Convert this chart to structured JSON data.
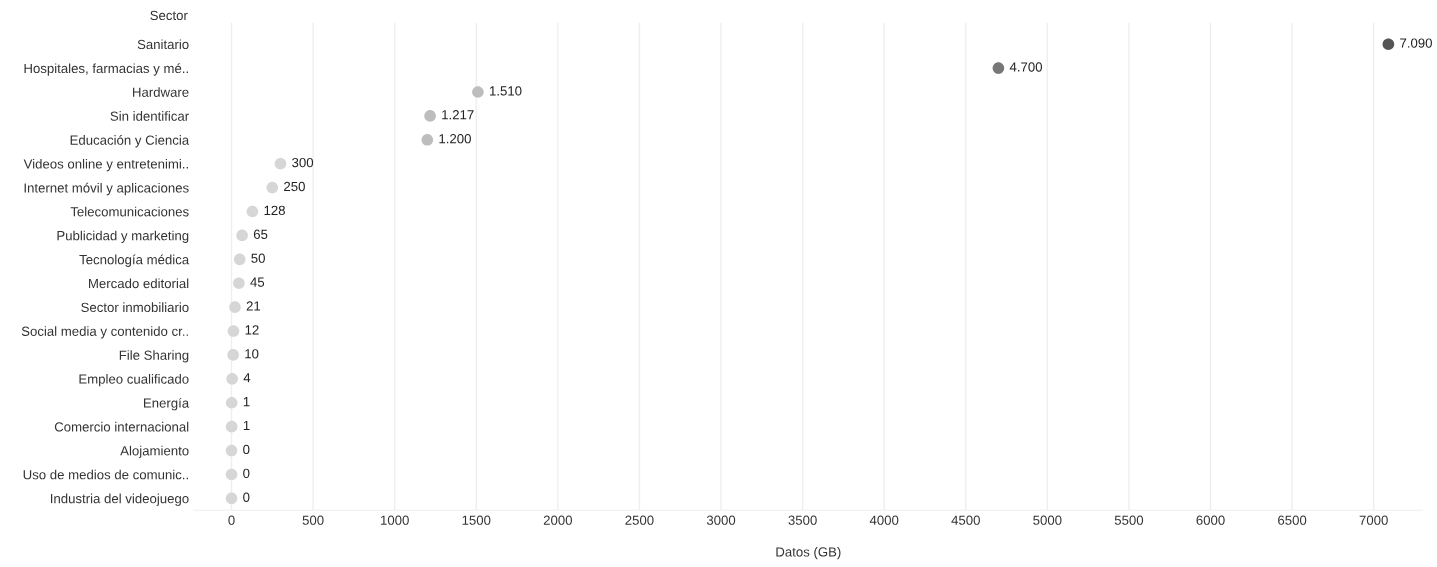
{
  "chart_data": {
    "type": "scatter",
    "orientation": "horizontal",
    "xlabel": "Datos (GB)",
    "ylabel": "Sector",
    "categories": [
      "Sanitario",
      "Hospitales, farmacias y mé..",
      "Hardware",
      "Sin identificar",
      "Educación y Ciencia",
      "Videos online y entretenimi..",
      "Internet móvil y aplicaciones",
      "Telecomunicaciones",
      "Publicidad y marketing",
      "Tecnología médica",
      "Mercado editorial",
      "Sector inmobiliario",
      "Social media y contenido cr..",
      "File Sharing",
      "Empleo cualificado",
      "Energía",
      "Comercio internacional",
      "Alojamiento",
      "Uso de medios de comunic..",
      "Industria del videojuego"
    ],
    "values": [
      7090,
      4700,
      1510,
      1217,
      1200,
      300,
      250,
      128,
      65,
      50,
      45,
      21,
      12,
      10,
      4,
      1,
      1,
      0,
      0,
      0
    ],
    "value_labels": [
      "7.090",
      "4.700",
      "1.510",
      "1.217",
      "1.200",
      "300",
      "250",
      "128",
      "65",
      "50",
      "45",
      "21",
      "12",
      "10",
      "4",
      "1",
      "1",
      "0",
      "0",
      "0"
    ],
    "colors": [
      "#555555",
      "#777777",
      "#bdbdbd",
      "#bdbdbd",
      "#bdbdbd",
      "#d6d6d6",
      "#d6d6d6",
      "#d6d6d6",
      "#d6d6d6",
      "#d6d6d6",
      "#d6d6d6",
      "#d6d6d6",
      "#d6d6d6",
      "#d6d6d6",
      "#d6d6d6",
      "#d6d6d6",
      "#d6d6d6",
      "#d6d6d6",
      "#d6d6d6",
      "#d6d6d6"
    ],
    "xlim": [
      -230,
      7300
    ],
    "xticks": [
      0,
      500,
      1000,
      1500,
      2000,
      2500,
      3000,
      3500,
      4000,
      4500,
      5000,
      5500,
      6000,
      6500,
      7000
    ],
    "grid": "x",
    "marker": "circle"
  }
}
